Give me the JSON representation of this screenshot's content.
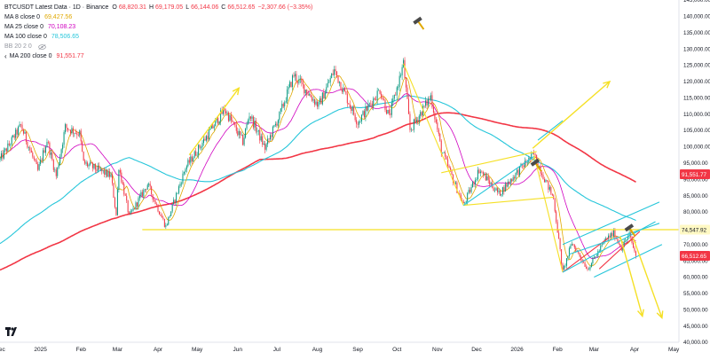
{
  "header": {
    "symbol": "BTCUSDT Latest Data · 1D · Binance",
    "ohlc": {
      "O": "68,820.31",
      "H": "69,179.05",
      "L": "66,144.06",
      "C": "66,512.65",
      "change": "−2,307.66 (−3.35%)"
    },
    "ohlc_color": "#f23645"
  },
  "indicators": [
    {
      "label": "MA 8 close 0",
      "value": "69,427.56",
      "color": "#e0a800"
    },
    {
      "label": "MA 25 close 0",
      "value": "70,108.23",
      "color": "#d000c0"
    },
    {
      "label": "MA 100 close 0",
      "value": "78,506.65",
      "color": "#26c6da"
    },
    {
      "label": "BB 20 2 0",
      "value": "",
      "color": "#9598a1"
    },
    {
      "label": "MA 200 close 0",
      "value": "91,551.77",
      "color": "#f23645"
    }
  ],
  "chart_data": {
    "type": "candlestick",
    "symbol": "BTCUSDT",
    "timeframe": "1D",
    "y_axis": {
      "range": [
        40000,
        145000
      ],
      "ticks": [
        "145,000.00",
        "140,000.00",
        "135,000.00",
        "130,000.00",
        "125,000.00",
        "120,000.00",
        "115,000.00",
        "110,000.00",
        "105,000.00",
        "100,000.00",
        "95,000.00",
        "90,000.00",
        "85,000.00",
        "80,000.00",
        "75,000.00",
        "70,000.00",
        "65,000.00",
        "60,000.00",
        "55,000.00",
        "50,000.00",
        "45,000.00",
        "40,000.00"
      ],
      "side": "right"
    },
    "x_axis": {
      "range": [
        "2024-12-01",
        "2026-05-05"
      ],
      "ticks": [
        {
          "label": "Dec",
          "date": "2024-12-01"
        },
        {
          "label": "2025",
          "date": "2025-01-01"
        },
        {
          "label": "Feb",
          "date": "2025-02-01"
        },
        {
          "label": "Mar",
          "date": "2025-03-01"
        },
        {
          "label": "Apr",
          "date": "2025-04-01"
        },
        {
          "label": "May",
          "date": "2025-05-01"
        },
        {
          "label": "Jun",
          "date": "2025-06-01"
        },
        {
          "label": "Jul",
          "date": "2025-07-01"
        },
        {
          "label": "Aug",
          "date": "2025-08-01"
        },
        {
          "label": "Sep",
          "date": "2025-09-01"
        },
        {
          "label": "Oct",
          "date": "2025-10-01"
        },
        {
          "label": "Nov",
          "date": "2025-11-01"
        },
        {
          "label": "Dec",
          "date": "2025-12-01"
        },
        {
          "label": "2026",
          "date": "2026-01-01"
        },
        {
          "label": "Feb",
          "date": "2026-02-01"
        },
        {
          "label": "Mar",
          "date": "2026-03-01"
        },
        {
          "label": "Apr",
          "date": "2026-04-01"
        },
        {
          "label": "May",
          "date": "2026-05-01"
        }
      ]
    },
    "price_path": [
      [
        "2024-12-01",
        96000
      ],
      [
        "2024-12-17",
        106500
      ],
      [
        "2024-12-30",
        92500
      ],
      [
        "2025-01-06",
        102000
      ],
      [
        "2025-01-13",
        91000
      ],
      [
        "2025-01-20",
        106000
      ],
      [
        "2025-01-31",
        104000
      ],
      [
        "2025-02-03",
        95000
      ],
      [
        "2025-02-24",
        91000
      ],
      [
        "2025-02-28",
        79000
      ],
      [
        "2025-03-02",
        94000
      ],
      [
        "2025-03-10",
        78500
      ],
      [
        "2025-03-24",
        88500
      ],
      [
        "2025-04-07",
        75500
      ],
      [
        "2025-04-22",
        93500
      ],
      [
        "2025-05-08",
        103000
      ],
      [
        "2025-05-22",
        111500
      ],
      [
        "2025-06-05",
        101500
      ],
      [
        "2025-06-10",
        110000
      ],
      [
        "2025-06-22",
        99500
      ],
      [
        "2025-07-03",
        109500
      ],
      [
        "2025-07-14",
        122000
      ],
      [
        "2025-08-02",
        112500
      ],
      [
        "2025-08-14",
        123500
      ],
      [
        "2025-09-01",
        107500
      ],
      [
        "2025-09-18",
        117500
      ],
      [
        "2025-09-25",
        109000
      ],
      [
        "2025-10-06",
        125500
      ],
      [
        "2025-10-11",
        105000
      ],
      [
        "2025-10-27",
        115500
      ],
      [
        "2025-11-04",
        99000
      ],
      [
        "2025-11-21",
        82000
      ],
      [
        "2025-12-03",
        93000
      ],
      [
        "2025-12-18",
        85500
      ],
      [
        "2026-01-05",
        94000
      ],
      [
        "2026-01-14",
        97500
      ],
      [
        "2026-01-29",
        84000
      ],
      [
        "2026-02-05",
        61500
      ],
      [
        "2026-02-12",
        70500
      ],
      [
        "2026-02-24",
        62500
      ],
      [
        "2026-03-10",
        71500
      ],
      [
        "2026-03-16",
        73500
      ],
      [
        "2026-03-22",
        69000
      ],
      [
        "2026-03-28",
        73000
      ],
      [
        "2026-04-02",
        66512
      ]
    ],
    "series": [
      {
        "name": "MA 8 close 0",
        "color": "#e0a800",
        "last": 69427.56
      },
      {
        "name": "MA 25 close 0",
        "color": "#d000c0",
        "last": 70108.23
      },
      {
        "name": "MA 100 close 0",
        "color": "#26c6da",
        "last": 78506.65
      },
      {
        "name": "MA 200 close 0",
        "color": "#f23645",
        "last": 91551.77
      },
      {
        "name": "BB 20 2 0",
        "color": "#9598a1"
      }
    ],
    "price_labels": [
      {
        "text": "91,551.77",
        "value": 91551.77,
        "bg": "#f23645",
        "fg": "#ffffff"
      },
      {
        "text": "74,547.92",
        "value": 74547.92,
        "bg": "#fff9c4",
        "fg": "#131722"
      },
      {
        "text": "66,512.65",
        "value": 66512.65,
        "bg": "#f23645",
        "fg": "#ffffff"
      }
    ],
    "drawings": {
      "horizontal_line": {
        "value": 74547.92,
        "from": "2025-03-20",
        "to": "2026-05-05",
        "color": "#f5e025"
      },
      "arrows": [
        {
          "from": [
            "2025-04-25",
            97500
          ],
          "to": [
            "2025-06-02",
            118000
          ],
          "color": "#f5e025"
        },
        {
          "from": [
            "2026-01-13",
            99500
          ],
          "to": [
            "2026-03-13",
            120000
          ],
          "color": "#f5e025"
        },
        {
          "from": [
            "2026-03-21",
            72500
          ],
          "to": [
            "2026-04-07",
            48000
          ],
          "color": "#f5e025"
        },
        {
          "from": [
            "2026-03-31",
            72000
          ],
          "to": [
            "2026-04-22",
            47500
          ],
          "color": "#f5e025"
        }
      ],
      "lines": [
        {
          "from": [
            "2025-10-06",
            125500
          ],
          "to": [
            "2025-11-21",
            82000
          ],
          "color": "#f5e025"
        },
        {
          "from": [
            "2025-11-21",
            82000
          ],
          "to": [
            "2026-01-29",
            84500
          ],
          "color": "#f5e025"
        },
        {
          "from": [
            "2025-11-21",
            82000
          ],
          "to": [
            "2026-01-14",
            97000
          ],
          "color": "#26c6da"
        },
        {
          "from": [
            "2025-11-04",
            92000
          ],
          "to": [
            "2026-01-16",
            98500
          ],
          "color": "#f5e025"
        },
        {
          "from": [
            "2026-01-14",
            97500
          ],
          "to": [
            "2026-02-05",
            61500
          ],
          "color": "#f5e025"
        },
        {
          "from": [
            "2026-02-05",
            61500
          ],
          "to": [
            "2026-03-12",
            72000
          ],
          "color": "#f23645"
        },
        {
          "from": [
            "2026-02-05",
            61500
          ],
          "to": [
            "2026-04-17",
            77000
          ],
          "color": "#26c6da"
        },
        {
          "from": [
            "2026-02-05",
            70000
          ],
          "to": [
            "2026-04-20",
            83000
          ],
          "color": "#26c6da"
        },
        {
          "from": [
            "2026-03-01",
            60000
          ],
          "to": [
            "2026-04-22",
            70000
          ],
          "color": "#26c6da"
        },
        {
          "from": [
            "2026-02-10",
            67000
          ],
          "to": [
            "2026-04-20",
            76500
          ],
          "color": "#26c6da"
        },
        {
          "from": [
            "2026-03-05",
            62500
          ],
          "to": [
            "2026-04-05",
            74000
          ],
          "color": "#f23645"
        },
        {
          "from": [
            "2026-01-17",
            102000
          ],
          "to": [
            "2026-02-05",
            108000
          ],
          "color": "#26c6da"
        }
      ],
      "markers": [
        {
          "icon": "hammer-icon",
          "at": [
            "2025-10-18",
            138000
          ]
        },
        {
          "icon": "hammer-icon",
          "at": [
            "2026-01-16",
            94500
          ]
        },
        {
          "icon": "hammer-icon",
          "at": [
            "2026-03-29",
            74500
          ]
        }
      ]
    },
    "up_color": "#089981",
    "down_color": "#f23645",
    "grid": false
  }
}
